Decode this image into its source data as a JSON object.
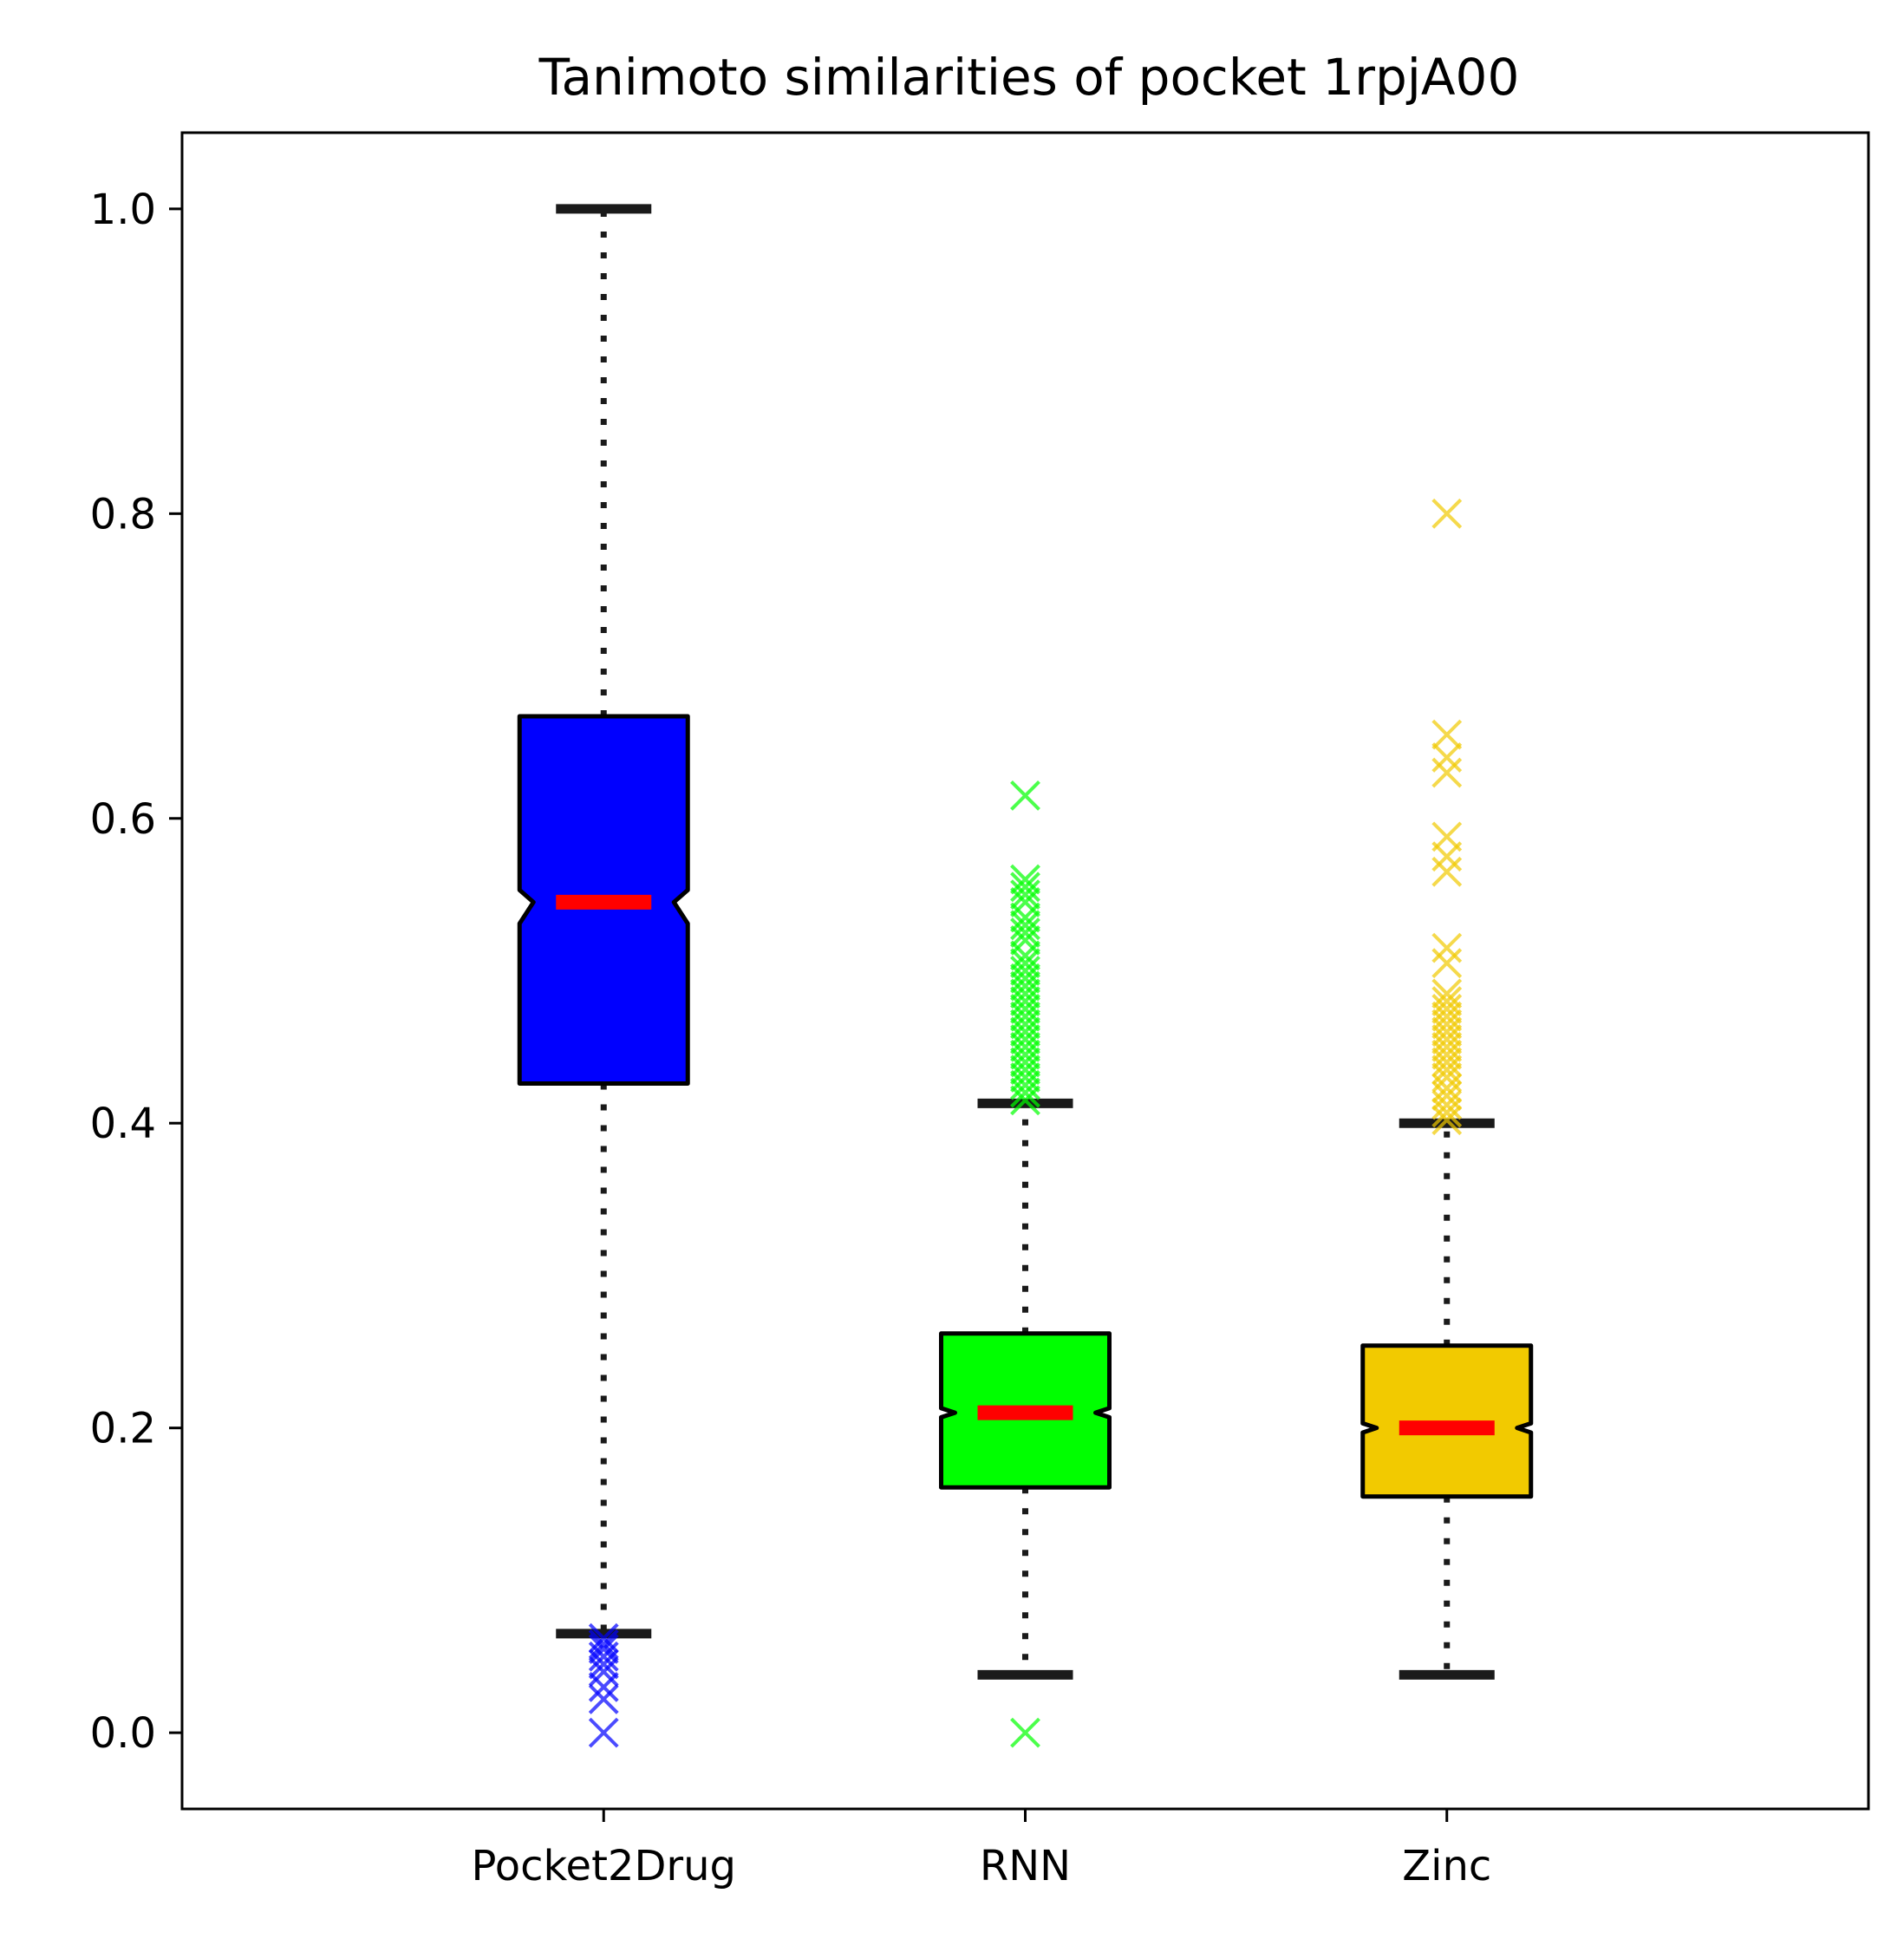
{
  "chart_data": {
    "type": "boxplot",
    "title": "Tanimoto similarities of pocket 1rpjA00",
    "xlabel": "",
    "ylabel": "",
    "ylim": [
      -0.05,
      1.05
    ],
    "yticks": [
      0.0,
      0.2,
      0.4,
      0.6,
      0.8,
      1.0
    ],
    "ytick_labels": [
      "0.0",
      "0.2",
      "0.4",
      "0.6",
      "0.8",
      "1.0"
    ],
    "grid": false,
    "median_color": "#ff0000",
    "whisker_color": "#1a1a1a",
    "categories": [
      "Pocket2Drug",
      "RNN",
      "Zinc"
    ],
    "boxes": [
      {
        "label": "Pocket2Drug",
        "color": "#0000ff",
        "whisker_low": 0.065,
        "q1": 0.426,
        "median": 0.545,
        "q3": 0.667,
        "whisker_high": 1.0,
        "notch_low": 0.531,
        "notch_high": 0.553,
        "outliers": [
          0.0,
          0.022,
          0.03,
          0.04,
          0.045,
          0.05,
          0.055,
          0.058,
          0.062
        ]
      },
      {
        "label": "RNN",
        "color": "#00ff00",
        "whisker_low": 0.038,
        "q1": 0.161,
        "median": 0.21,
        "q3": 0.262,
        "whisker_high": 0.413,
        "notch_low": 0.207,
        "notch_high": 0.213,
        "outliers": [
          0.0,
          0.415,
          0.42,
          0.425,
          0.43,
          0.435,
          0.44,
          0.445,
          0.45,
          0.455,
          0.46,
          0.465,
          0.47,
          0.475,
          0.48,
          0.485,
          0.49,
          0.495,
          0.5,
          0.505,
          0.51,
          0.52,
          0.525,
          0.53,
          0.535,
          0.545,
          0.55,
          0.555,
          0.56,
          0.615
        ]
      },
      {
        "label": "Zinc",
        "color": "#f2ca00",
        "whisker_low": 0.038,
        "q1": 0.155,
        "median": 0.2,
        "q3": 0.254,
        "whisker_high": 0.4,
        "notch_low": 0.197,
        "notch_high": 0.203,
        "outliers": [
          0.402,
          0.407,
          0.412,
          0.418,
          0.423,
          0.43,
          0.435,
          0.44,
          0.445,
          0.45,
          0.455,
          0.46,
          0.465,
          0.47,
          0.475,
          0.48,
          0.485,
          0.505,
          0.515,
          0.565,
          0.575,
          0.588,
          0.63,
          0.64,
          0.655,
          0.8
        ]
      }
    ]
  }
}
